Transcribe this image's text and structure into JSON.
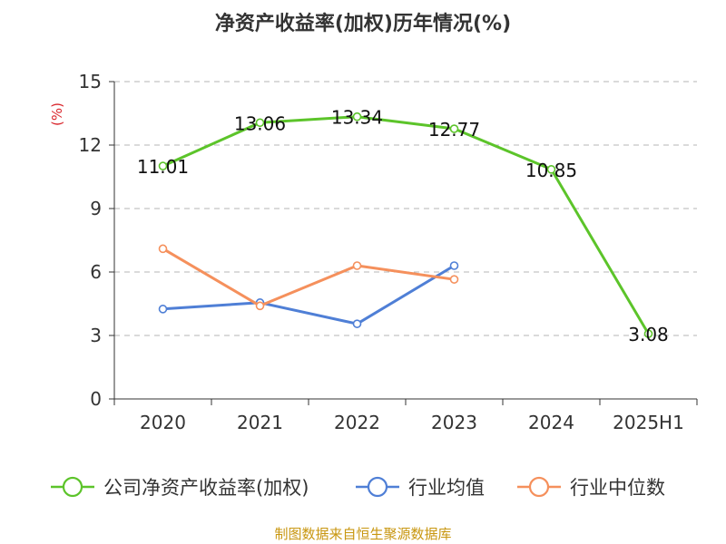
{
  "chart_data": {
    "type": "line",
    "title": "净资产收益率(加权)历年情况(%)",
    "ylabel": "(%)",
    "xlabel": "",
    "categories": [
      "2020",
      "2021",
      "2022",
      "2023",
      "2024",
      "2025H1"
    ],
    "ylim": [
      0,
      15
    ],
    "yticks": [
      0,
      3,
      6,
      9,
      12,
      15
    ],
    "grid": true,
    "legend_position": "bottom",
    "series": [
      {
        "name": "公司净资产收益率(加权)",
        "color": "#5cc42a",
        "values": [
          11.01,
          13.06,
          13.34,
          12.77,
          10.85,
          3.08
        ],
        "show_labels": true
      },
      {
        "name": "行业均值",
        "color": "#4f7fd6",
        "values": [
          4.25,
          4.55,
          3.55,
          6.3,
          null,
          null
        ],
        "show_labels": false
      },
      {
        "name": "行业中位数",
        "color": "#f5905c",
        "values": [
          7.1,
          4.4,
          6.3,
          5.65,
          null,
          null
        ],
        "show_labels": false
      }
    ]
  },
  "source": "制图数据来自恒生聚源数据库"
}
